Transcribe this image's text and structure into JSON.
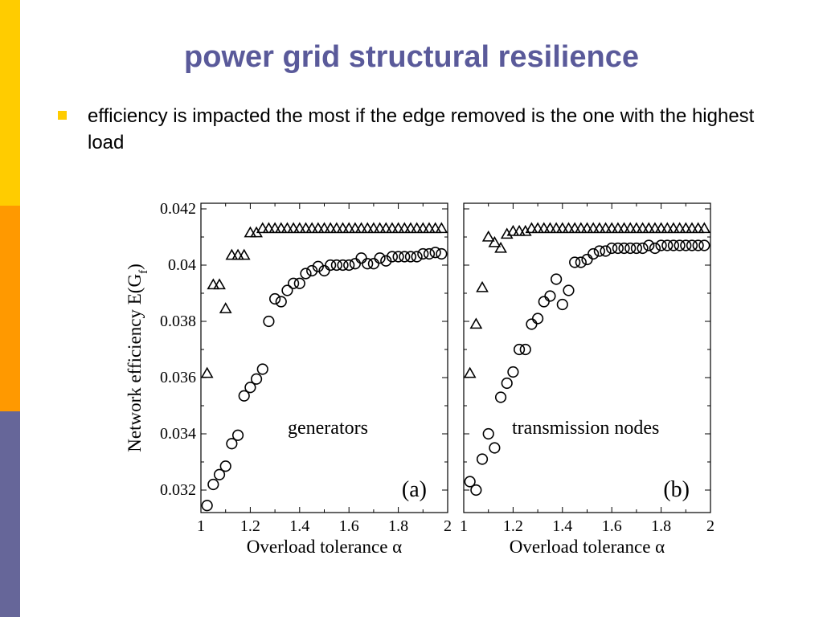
{
  "slide": {
    "title": "power grid structural resilience",
    "bullet": "efficiency is impacted the most if the edge removed is the one with the highest load",
    "colors": {
      "title": "#5a5a9a",
      "bullet": "#ffcc00",
      "accent_yellow": "#ffcc00",
      "accent_orange": "#ff9900",
      "accent_purple": "#666699"
    }
  },
  "chart_data": [
    {
      "type": "scatter",
      "panel_label": "(a)",
      "annotation": "generators",
      "xlabel": "Overload tolerance α",
      "ylabel": "Network efficiency E(G",
      "ylabel_sub": "f",
      "ylabel_close": ")",
      "xlim": [
        1,
        2
      ],
      "ylim": [
        0.0312,
        0.0422
      ],
      "xticks": [
        1,
        1.2,
        1.4,
        1.6,
        1.8,
        2
      ],
      "xtick_labels": [
        "1",
        "1.2",
        "1.4",
        "1.6",
        "1.8",
        "2"
      ],
      "yticks": [
        0.032,
        0.034,
        0.036,
        0.038,
        0.04,
        0.042
      ],
      "ytick_labels": [
        "0.032",
        "0.034",
        "0.036",
        "0.038",
        "0.04",
        "0.042"
      ],
      "series": [
        {
          "marker": "triangle",
          "x": [
            1.025,
            1.05,
            1.075,
            1.1,
            1.125,
            1.15,
            1.175,
            1.2,
            1.225,
            1.25,
            1.275,
            1.3,
            1.325,
            1.35,
            1.375,
            1.4,
            1.425,
            1.45,
            1.475,
            1.5,
            1.525,
            1.55,
            1.575,
            1.6,
            1.625,
            1.65,
            1.675,
            1.7,
            1.725,
            1.75,
            1.775,
            1.8,
            1.825,
            1.85,
            1.875,
            1.9,
            1.925,
            1.95,
            1.975
          ],
          "y": [
            0.03615,
            0.0393,
            0.0393,
            0.03845,
            0.04035,
            0.04035,
            0.04035,
            0.04115,
            0.04115,
            0.0413,
            0.0413,
            0.0413,
            0.0413,
            0.0413,
            0.0413,
            0.0413,
            0.0413,
            0.0413,
            0.0413,
            0.0413,
            0.0413,
            0.0413,
            0.0413,
            0.0413,
            0.0413,
            0.0413,
            0.0413,
            0.0413,
            0.0413,
            0.0413,
            0.0413,
            0.0413,
            0.0413,
            0.0413,
            0.0413,
            0.0413,
            0.0413,
            0.0413,
            0.0413
          ]
        },
        {
          "marker": "circle",
          "x": [
            1.025,
            1.05,
            1.075,
            1.1,
            1.125,
            1.15,
            1.175,
            1.2,
            1.225,
            1.25,
            1.275,
            1.3,
            1.325,
            1.35,
            1.375,
            1.4,
            1.425,
            1.45,
            1.475,
            1.5,
            1.525,
            1.55,
            1.575,
            1.6,
            1.625,
            1.65,
            1.675,
            1.7,
            1.725,
            1.75,
            1.775,
            1.8,
            1.825,
            1.85,
            1.875,
            1.9,
            1.925,
            1.95,
            1.975
          ],
          "y": [
            0.03145,
            0.0322,
            0.03255,
            0.03285,
            0.03365,
            0.03395,
            0.03535,
            0.03565,
            0.03595,
            0.0363,
            0.038,
            0.0388,
            0.0387,
            0.0391,
            0.03935,
            0.03935,
            0.0397,
            0.0398,
            0.03995,
            0.0398,
            0.04,
            0.04,
            0.04,
            0.04,
            0.04005,
            0.04025,
            0.04005,
            0.04005,
            0.04025,
            0.04015,
            0.0403,
            0.0403,
            0.0403,
            0.0403,
            0.0403,
            0.0404,
            0.0404,
            0.04045,
            0.0404
          ]
        }
      ]
    },
    {
      "type": "scatter",
      "panel_label": "(b)",
      "annotation": "transmission nodes",
      "xlabel": "Overload tolerance α",
      "xlim": [
        1,
        2
      ],
      "ylim": [
        0.0312,
        0.0422
      ],
      "xticks": [
        1,
        1.2,
        1.4,
        1.6,
        1.8,
        2
      ],
      "xtick_labels": [
        "1",
        "1.2",
        "1.4",
        "1.6",
        "1.8",
        "2"
      ],
      "series": [
        {
          "marker": "triangle",
          "x": [
            1.025,
            1.05,
            1.075,
            1.1,
            1.125,
            1.15,
            1.175,
            1.2,
            1.225,
            1.25,
            1.275,
            1.3,
            1.325,
            1.35,
            1.375,
            1.4,
            1.425,
            1.45,
            1.475,
            1.5,
            1.525,
            1.55,
            1.575,
            1.6,
            1.625,
            1.65,
            1.675,
            1.7,
            1.725,
            1.75,
            1.775,
            1.8,
            1.825,
            1.85,
            1.875,
            1.9,
            1.925,
            1.95,
            1.975
          ],
          "y": [
            0.03615,
            0.0379,
            0.0392,
            0.041,
            0.0408,
            0.0406,
            0.0411,
            0.0412,
            0.0412,
            0.0412,
            0.0413,
            0.0413,
            0.0413,
            0.0413,
            0.0413,
            0.0413,
            0.0413,
            0.0413,
            0.0413,
            0.0413,
            0.0413,
            0.0413,
            0.0413,
            0.0413,
            0.0413,
            0.0413,
            0.0413,
            0.0413,
            0.0413,
            0.0413,
            0.0413,
            0.0413,
            0.0413,
            0.0413,
            0.0413,
            0.0413,
            0.0413,
            0.0413,
            0.0413
          ]
        },
        {
          "marker": "circle",
          "x": [
            1.025,
            1.05,
            1.075,
            1.1,
            1.125,
            1.15,
            1.175,
            1.2,
            1.225,
            1.25,
            1.275,
            1.3,
            1.325,
            1.35,
            1.375,
            1.4,
            1.425,
            1.45,
            1.475,
            1.5,
            1.525,
            1.55,
            1.575,
            1.6,
            1.625,
            1.65,
            1.675,
            1.7,
            1.725,
            1.75,
            1.775,
            1.8,
            1.825,
            1.85,
            1.875,
            1.9,
            1.925,
            1.95,
            1.975
          ],
          "y": [
            0.0323,
            0.032,
            0.0331,
            0.034,
            0.0335,
            0.0353,
            0.0358,
            0.0362,
            0.037,
            0.037,
            0.0379,
            0.0381,
            0.0387,
            0.0389,
            0.0395,
            0.0386,
            0.0391,
            0.0401,
            0.0401,
            0.0402,
            0.0404,
            0.0405,
            0.0405,
            0.0406,
            0.0406,
            0.0406,
            0.0406,
            0.0406,
            0.0406,
            0.0407,
            0.0406,
            0.0407,
            0.0407,
            0.0407,
            0.0407,
            0.0407,
            0.0407,
            0.0407,
            0.0407
          ]
        }
      ]
    }
  ]
}
